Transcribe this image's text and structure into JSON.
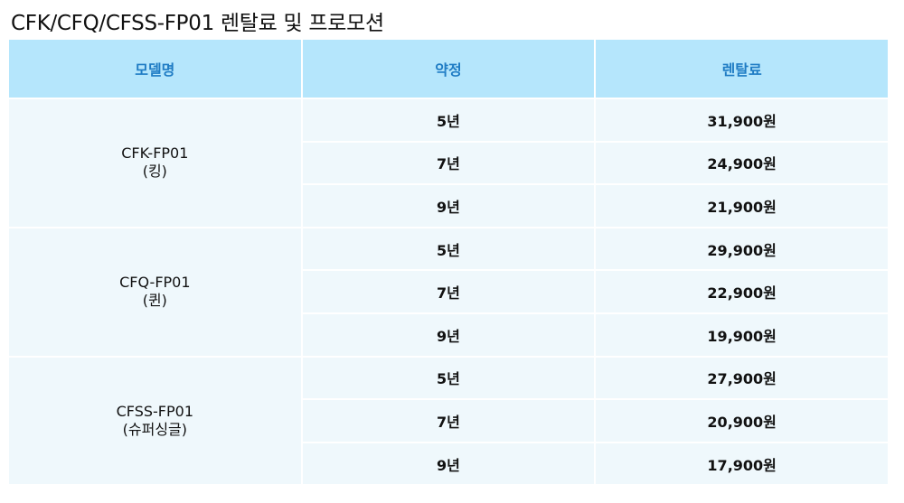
{
  "title": "CFK/CFQ/CFSS-FP01 렌탈료 및 프로모션",
  "headers": [
    "모델명",
    "약정",
    "렌탈료"
  ],
  "colors": {
    "header_bg": "#b5e6fc",
    "header_text": "#1f7cc4",
    "body_bg": "#eff8fc"
  },
  "groups": [
    {
      "model": "CFK-FP01",
      "sub": "(킹)",
      "rows": [
        {
          "term": "5년",
          "price": "31,900원"
        },
        {
          "term": "7년",
          "price": "24,900원"
        },
        {
          "term": "9년",
          "price": "21,900원"
        }
      ]
    },
    {
      "model": "CFQ-FP01",
      "sub": "(퀸)",
      "rows": [
        {
          "term": "5년",
          "price": "29,900원"
        },
        {
          "term": "7년",
          "price": "22,900원"
        },
        {
          "term": "9년",
          "price": "19,900원"
        }
      ]
    },
    {
      "model": "CFSS-FP01",
      "sub": "(슈퍼싱글)",
      "rows": [
        {
          "term": "5년",
          "price": "27,900원"
        },
        {
          "term": "7년",
          "price": "20,900원"
        },
        {
          "term": "9년",
          "price": "17,900원"
        }
      ]
    }
  ]
}
